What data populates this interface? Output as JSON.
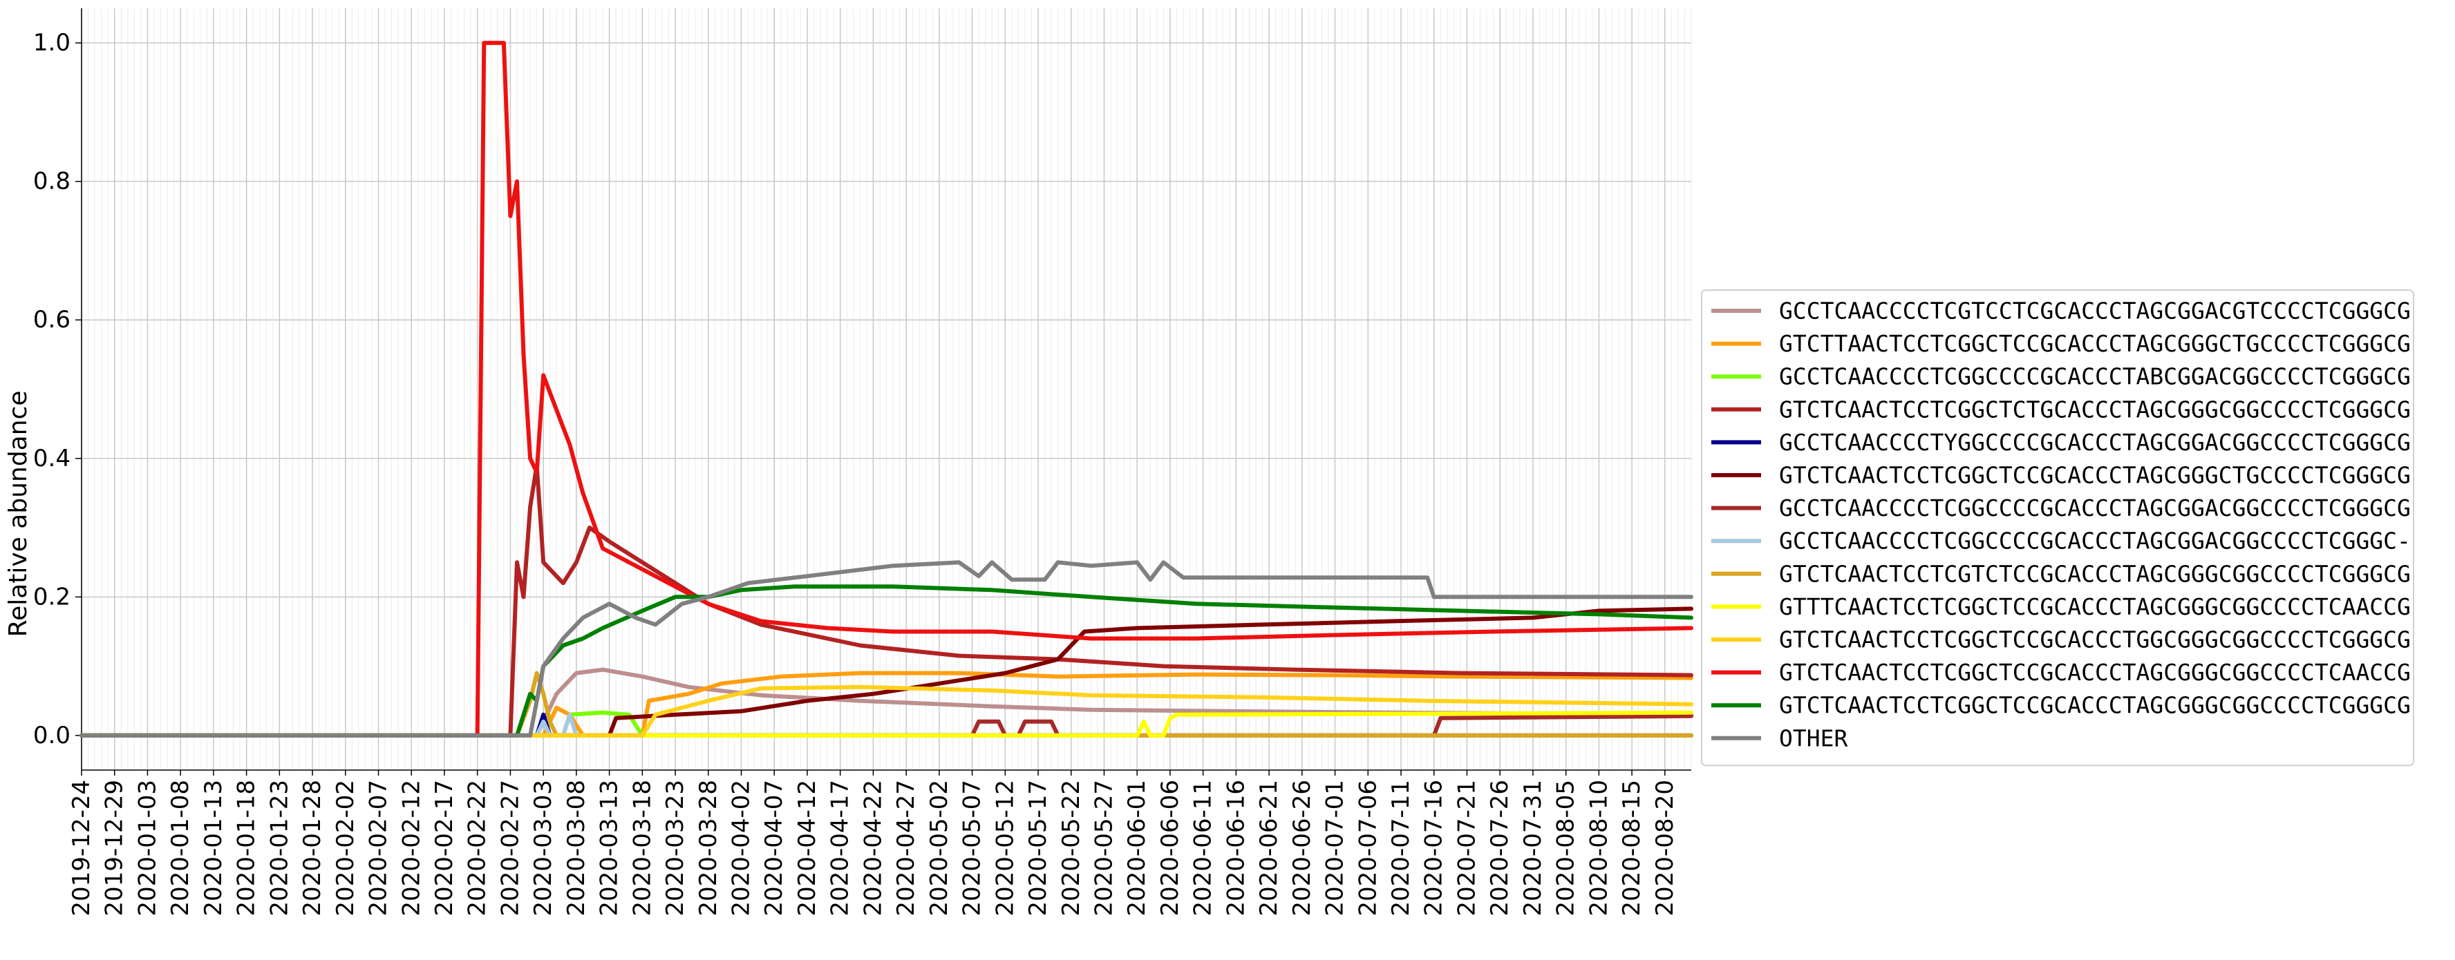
{
  "chart_data": {
    "type": "line",
    "xlabel": "",
    "ylabel": "Relative abundance",
    "xlim": [
      "2019-12-24",
      "2020-08-24"
    ],
    "ylim": [
      -0.05,
      1.05
    ],
    "y_ticks": [
      "0.0",
      "0.2",
      "0.4",
      "0.6",
      "0.8",
      "1.0"
    ],
    "x_ticks": [
      "2019-12-24",
      "2019-12-29",
      "2020-01-03",
      "2020-01-08",
      "2020-01-13",
      "2020-01-18",
      "2020-01-23",
      "2020-01-28",
      "2020-02-02",
      "2020-02-07",
      "2020-02-12",
      "2020-02-17",
      "2020-02-22",
      "2020-02-27",
      "2020-03-03",
      "2020-03-08",
      "2020-03-13",
      "2020-03-18",
      "2020-03-23",
      "2020-03-28",
      "2020-04-02",
      "2020-04-07",
      "2020-04-12",
      "2020-04-17",
      "2020-04-22",
      "2020-04-27",
      "2020-05-02",
      "2020-05-07",
      "2020-05-12",
      "2020-05-17",
      "2020-05-22",
      "2020-05-27",
      "2020-06-01",
      "2020-06-06",
      "2020-06-11",
      "2020-06-16",
      "2020-06-21",
      "2020-06-26",
      "2020-07-01",
      "2020-07-06",
      "2020-07-11",
      "2020-07-16",
      "2020-07-21",
      "2020-07-26",
      "2020-07-31",
      "2020-08-05",
      "2020-08-10",
      "2020-08-15",
      "2020-08-20"
    ],
    "grid": true,
    "legend_position": "right",
    "series": [
      {
        "name": "GCCTCAACCCCTCGTCCTCGCACCCTAGCGGACGTCCCCTCGGGCG",
        "color": "#bc8f8f",
        "points": [
          [
            "2019-12-24",
            0
          ],
          [
            "2020-03-02",
            0
          ],
          [
            "2020-03-05",
            0.06
          ],
          [
            "2020-03-08",
            0.09
          ],
          [
            "2020-03-12",
            0.095
          ],
          [
            "2020-03-18",
            0.085
          ],
          [
            "2020-03-25",
            0.07
          ],
          [
            "2020-04-05",
            0.058
          ],
          [
            "2020-04-20",
            0.05
          ],
          [
            "2020-05-10",
            0.042
          ],
          [
            "2020-05-25",
            0.037
          ],
          [
            "2020-06-15",
            0.035
          ],
          [
            "2020-07-10",
            0.033
          ],
          [
            "2020-08-24",
            0.03
          ]
        ]
      },
      {
        "name": "GTCTTAACTCCTCGGCTCCGCACCCTAGCGGGCTGCCCCTCGGGCG",
        "color": "#ff9f0f",
        "points": [
          [
            "2019-12-24",
            0
          ],
          [
            "2020-03-03",
            0
          ],
          [
            "2020-03-05",
            0.04
          ],
          [
            "2020-03-07",
            0.03
          ],
          [
            "2020-03-09",
            0
          ],
          [
            "2020-03-18",
            0
          ],
          [
            "2020-03-19",
            0.05
          ],
          [
            "2020-03-25",
            0.06
          ],
          [
            "2020-03-30",
            0.075
          ],
          [
            "2020-04-08",
            0.085
          ],
          [
            "2020-04-20",
            0.09
          ],
          [
            "2020-05-05",
            0.09
          ],
          [
            "2020-05-20",
            0.085
          ],
          [
            "2020-06-10",
            0.088
          ],
          [
            "2020-07-01",
            0.087
          ],
          [
            "2020-07-20",
            0.085
          ],
          [
            "2020-08-24",
            0.083
          ]
        ]
      },
      {
        "name": "GCCTCAACCCCTCGGCCCCGCACCCTABCGGACGGCCCCTCGGGCG",
        "color": "#7cfc00",
        "points": [
          [
            "2019-12-24",
            0
          ],
          [
            "2020-03-06",
            0
          ],
          [
            "2020-03-07",
            0.03
          ],
          [
            "2020-03-12",
            0.033
          ],
          [
            "2020-03-16",
            0.03
          ],
          [
            "2020-03-18",
            0
          ],
          [
            "2020-08-24",
            0
          ]
        ]
      },
      {
        "name": "GTCTCAACTCCTCGGCTCTGCACCCTAGCGGGCGGCCCCTCGGGCG",
        "color": "#b22222",
        "points": [
          [
            "2019-12-24",
            0
          ],
          [
            "2020-02-27",
            0
          ],
          [
            "2020-02-28",
            0.25
          ],
          [
            "2020-02-29",
            0.2
          ],
          [
            "2020-03-01",
            0.33
          ],
          [
            "2020-03-02",
            0.39
          ],
          [
            "2020-03-03",
            0.25
          ],
          [
            "2020-03-04",
            0.24
          ],
          [
            "2020-03-06",
            0.22
          ],
          [
            "2020-03-08",
            0.25
          ],
          [
            "2020-03-10",
            0.3
          ],
          [
            "2020-03-13",
            0.28
          ],
          [
            "2020-03-18",
            0.25
          ],
          [
            "2020-03-23",
            0.22
          ],
          [
            "2020-03-28",
            0.19
          ],
          [
            "2020-04-05",
            0.16
          ],
          [
            "2020-04-20",
            0.13
          ],
          [
            "2020-05-05",
            0.115
          ],
          [
            "2020-05-20",
            0.11
          ],
          [
            "2020-06-05",
            0.1
          ],
          [
            "2020-06-25",
            0.095
          ],
          [
            "2020-07-20",
            0.09
          ],
          [
            "2020-08-24",
            0.087
          ]
        ]
      },
      {
        "name": "GCCTCAACCCCTYGGCCCCGCACCCTAGCGGACGGCCCCTCGGGCG",
        "color": "#00008b",
        "points": [
          [
            "2019-12-24",
            0
          ],
          [
            "2020-03-02",
            0
          ],
          [
            "2020-03-03",
            0.03
          ],
          [
            "2020-03-04",
            0
          ],
          [
            "2020-08-24",
            0
          ]
        ]
      },
      {
        "name": "GTCTCAACTCCTCGGCTCCGCACCCTAGCGGGCTGCCCCTCGGGCG",
        "color": "#800000",
        "points": [
          [
            "2019-12-24",
            0
          ],
          [
            "2020-03-13",
            0
          ],
          [
            "2020-03-14",
            0.025
          ],
          [
            "2020-03-23",
            0.03
          ],
          [
            "2020-04-02",
            0.035
          ],
          [
            "2020-04-12",
            0.05
          ],
          [
            "2020-04-22",
            0.06
          ],
          [
            "2020-05-02",
            0.075
          ],
          [
            "2020-05-12",
            0.09
          ],
          [
            "2020-05-20",
            0.11
          ],
          [
            "2020-05-24",
            0.15
          ],
          [
            "2020-06-01",
            0.155
          ],
          [
            "2020-06-20",
            0.16
          ],
          [
            "2020-07-10",
            0.165
          ],
          [
            "2020-07-31",
            0.17
          ],
          [
            "2020-08-10",
            0.18
          ],
          [
            "2020-08-24",
            0.183
          ]
        ]
      },
      {
        "name": "GCCTCAACCCCTCGGCCCCGCACCCTAGCGGACGGCCCCTCGGGCG",
        "color": "#a52a2a",
        "points": [
          [
            "2019-12-24",
            0
          ],
          [
            "2020-05-07",
            0
          ],
          [
            "2020-05-08",
            0.02
          ],
          [
            "2020-05-11",
            0.02
          ],
          [
            "2020-05-12",
            0
          ],
          [
            "2020-05-14",
            0
          ],
          [
            "2020-05-15",
            0.02
          ],
          [
            "2020-05-19",
            0.02
          ],
          [
            "2020-05-20",
            0
          ],
          [
            "2020-07-16",
            0
          ],
          [
            "2020-07-17",
            0.025
          ],
          [
            "2020-08-24",
            0.028
          ]
        ]
      },
      {
        "name": "GCCTCAACCCCTCGGCCCCGCACCCTAGCGGACGGCCCCTCGGGC-",
        "color": "#a6c8e0",
        "points": [
          [
            "2019-12-24",
            0
          ],
          [
            "2020-03-02",
            0
          ],
          [
            "2020-03-03",
            0.02
          ],
          [
            "2020-03-04",
            0
          ],
          [
            "2020-03-06",
            0
          ],
          [
            "2020-03-07",
            0.03
          ],
          [
            "2020-03-08",
            0
          ],
          [
            "2020-08-24",
            0
          ]
        ]
      },
      {
        "name": "GTCTCAACTCCTCGTCTCCGCACCCTAGCGGGCGGCCCCTCGGGCG",
        "color": "#daa520",
        "points": [
          [
            "2019-12-24",
            0
          ],
          [
            "2020-02-28",
            0
          ],
          [
            "2020-03-01",
            0.05
          ],
          [
            "2020-03-02",
            0.09
          ],
          [
            "2020-03-03",
            0.06
          ],
          [
            "2020-03-04",
            0.02
          ],
          [
            "2020-03-05",
            0
          ],
          [
            "2020-08-24",
            0
          ]
        ]
      },
      {
        "name": "GTTTCAACTCCTCGGCTCCGCACCCTAGCGGGCGGCCCCTCAACCG",
        "color": "#ffff00",
        "points": [
          [
            "2019-12-24",
            0
          ],
          [
            "2020-06-01",
            0
          ],
          [
            "2020-06-02",
            0.02
          ],
          [
            "2020-06-03",
            0
          ],
          [
            "2020-06-05",
            0
          ],
          [
            "2020-06-06",
            0.025
          ],
          [
            "2020-06-07",
            0.03
          ],
          [
            "2020-08-24",
            0.033
          ]
        ]
      },
      {
        "name": "GTCTCAACTCCTCGGCTCCGCACCCTGGCGGGCGGCCCCTCGGGCG",
        "color": "#ffd11a",
        "points": [
          [
            "2019-12-24",
            0
          ],
          [
            "2020-03-18",
            0
          ],
          [
            "2020-03-20",
            0.03
          ],
          [
            "2020-03-28",
            0.05
          ],
          [
            "2020-04-05",
            0.068
          ],
          [
            "2020-04-20",
            0.07
          ],
          [
            "2020-05-10",
            0.065
          ],
          [
            "2020-05-25",
            0.058
          ],
          [
            "2020-06-20",
            0.055
          ],
          [
            "2020-07-15",
            0.05
          ],
          [
            "2020-08-24",
            0.045
          ]
        ]
      },
      {
        "name": "GTCTCAACTCCTCGGCTCCGCACCCTAGCGGGCGGCCCCTCAACCG",
        "color": "#ee1111",
        "points": [
          [
            "2019-12-24",
            0
          ],
          [
            "2020-02-22",
            0
          ],
          [
            "2020-02-23",
            1.0
          ],
          [
            "2020-02-26",
            1.0
          ],
          [
            "2020-02-27",
            0.75
          ],
          [
            "2020-02-28",
            0.8
          ],
          [
            "2020-02-29",
            0.55
          ],
          [
            "2020-03-01",
            0.4
          ],
          [
            "2020-03-02",
            0.38
          ],
          [
            "2020-03-03",
            0.52
          ],
          [
            "2020-03-05",
            0.47
          ],
          [
            "2020-03-07",
            0.42
          ],
          [
            "2020-03-09",
            0.35
          ],
          [
            "2020-03-12",
            0.27
          ],
          [
            "2020-03-16",
            0.25
          ],
          [
            "2020-03-22",
            0.22
          ],
          [
            "2020-03-28",
            0.19
          ],
          [
            "2020-04-05",
            0.165
          ],
          [
            "2020-04-15",
            0.155
          ],
          [
            "2020-04-25",
            0.15
          ],
          [
            "2020-05-10",
            0.15
          ],
          [
            "2020-05-25",
            0.14
          ],
          [
            "2020-06-10",
            0.14
          ],
          [
            "2020-07-01",
            0.145
          ],
          [
            "2020-07-25",
            0.15
          ],
          [
            "2020-08-24",
            0.155
          ]
        ]
      },
      {
        "name": "GTCTCAACTCCTCGGCTCCGCACCCTAGCGGGCGGCCCCTCGGGCG",
        "color": "#008000",
        "points": [
          [
            "2019-12-24",
            0
          ],
          [
            "2020-02-28",
            0
          ],
          [
            "2020-03-01",
            0.06
          ],
          [
            "2020-03-02",
            0.05
          ],
          [
            "2020-03-03",
            0.1
          ],
          [
            "2020-03-06",
            0.13
          ],
          [
            "2020-03-09",
            0.14
          ],
          [
            "2020-03-12",
            0.155
          ],
          [
            "2020-03-18",
            0.18
          ],
          [
            "2020-03-23",
            0.2
          ],
          [
            "2020-03-28",
            0.2
          ],
          [
            "2020-04-02",
            0.21
          ],
          [
            "2020-04-10",
            0.215
          ],
          [
            "2020-04-25",
            0.215
          ],
          [
            "2020-05-10",
            0.21
          ],
          [
            "2020-05-25",
            0.2
          ],
          [
            "2020-06-10",
            0.19
          ],
          [
            "2020-06-30",
            0.185
          ],
          [
            "2020-07-20",
            0.18
          ],
          [
            "2020-08-10",
            0.175
          ],
          [
            "2020-08-24",
            0.17
          ]
        ]
      },
      {
        "name": "OTHER",
        "color": "#808080",
        "points": [
          [
            "2019-12-24",
            0
          ],
          [
            "2020-03-01",
            0
          ],
          [
            "2020-03-03",
            0.1
          ],
          [
            "2020-03-06",
            0.14
          ],
          [
            "2020-03-09",
            0.17
          ],
          [
            "2020-03-13",
            0.19
          ],
          [
            "2020-03-17",
            0.17
          ],
          [
            "2020-03-20",
            0.16
          ],
          [
            "2020-03-24",
            0.19
          ],
          [
            "2020-03-28",
            0.2
          ],
          [
            "2020-04-03",
            0.22
          ],
          [
            "2020-04-12",
            0.23
          ],
          [
            "2020-04-25",
            0.245
          ],
          [
            "2020-05-05",
            0.25
          ],
          [
            "2020-05-08",
            0.23
          ],
          [
            "2020-05-10",
            0.25
          ],
          [
            "2020-05-13",
            0.225
          ],
          [
            "2020-05-18",
            0.225
          ],
          [
            "2020-05-20",
            0.25
          ],
          [
            "2020-05-25",
            0.245
          ],
          [
            "2020-06-01",
            0.25
          ],
          [
            "2020-06-03",
            0.225
          ],
          [
            "2020-06-05",
            0.25
          ],
          [
            "2020-06-08",
            0.228
          ],
          [
            "2020-06-20",
            0.228
          ],
          [
            "2020-07-15",
            0.228
          ],
          [
            "2020-07-16",
            0.2
          ],
          [
            "2020-08-24",
            0.2
          ]
        ]
      }
    ]
  }
}
